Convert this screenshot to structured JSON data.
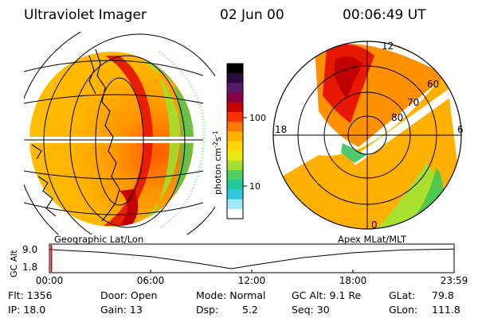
{
  "header": {
    "title": "Ultraviolet Imager",
    "date": "02 Jun 00",
    "time": "00:06:49 UT"
  },
  "colorbar": {
    "label": "photon cm",
    "label_sup1": "-2",
    "label_mid": "s",
    "label_sup2": "-1",
    "tick_labels": [
      "100",
      "10"
    ],
    "colors": [
      "#000000",
      "#2a0a3e",
      "#5a1a6e",
      "#8a0040",
      "#c80000",
      "#ff3000",
      "#ff7a00",
      "#ffb000",
      "#ffd400",
      "#e8ea10",
      "#a8e030",
      "#50d060",
      "#20c8a0",
      "#30c8e0",
      "#a0e8f4",
      "#ffffff"
    ]
  },
  "panels": {
    "left_label": "Geographic Lat/Lon",
    "right_label": "Apex MLat/MLT"
  },
  "polar_plot": {
    "mlt_labels": [
      "12",
      "18",
      "6",
      "0"
    ],
    "mlat_labels": [
      "60",
      "70",
      "80"
    ]
  },
  "altitude_chart": {
    "ylabel": "GC Alt",
    "yticks": [
      "9.0",
      "1.8"
    ],
    "xticks": [
      "00:00",
      "06:00",
      "12:00",
      "18:00",
      "23:59"
    ]
  },
  "chart_data": {
    "type": "line",
    "title": "",
    "xlabel": "",
    "ylabel": "GC Alt",
    "x": [
      0,
      3,
      6,
      9,
      10.8,
      12,
      15,
      18,
      21,
      23.98
    ],
    "values": [
      8.75,
      7.75,
      6.2,
      3.6,
      1.8,
      3.0,
      5.8,
      7.6,
      8.6,
      8.9
    ],
    "ylim": [
      1.8,
      9.0
    ],
    "xlim": [
      0,
      24
    ],
    "marker_x": 0.11
  },
  "status": {
    "flt": "Flt:  1356",
    "ip": "IP:  18.0",
    "door": "Door:  Open",
    "gain": "Gain:  13",
    "mode": "Mode:  Normal",
    "dsp": "Dsp:",
    "dsp_value": "5.2",
    "gc_alt": "GC Alt:  9.1 Re",
    "seq": "Seq:  30",
    "glat": "GLat:",
    "glat_value": "79.8",
    "glon": "GLon:",
    "glon_value": "111.8"
  }
}
